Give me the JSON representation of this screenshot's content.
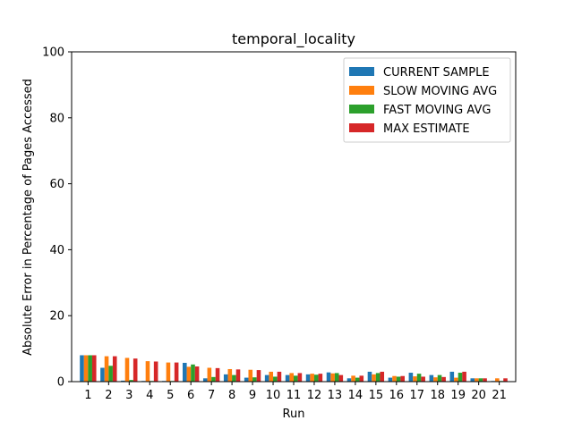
{
  "chart_data": {
    "type": "bar",
    "title": "temporal_locality",
    "xlabel": "Run",
    "ylabel": "Absolute Error in Percentage of Pages Accessed",
    "ylim": [
      0,
      100
    ],
    "yticks": [
      0,
      20,
      40,
      60,
      80,
      100
    ],
    "legend_position": "top-right",
    "grid": false,
    "categories": [
      "1",
      "2",
      "3",
      "4",
      "5",
      "6",
      "7",
      "8",
      "9",
      "10",
      "11",
      "12",
      "13",
      "14",
      "15",
      "16",
      "17",
      "18",
      "19",
      "20",
      "21"
    ],
    "series": [
      {
        "name": "CURRENT SAMPLE",
        "color": "#1f77b4",
        "values": [
          8.0,
          4.2,
          0.3,
          0.2,
          0.2,
          5.7,
          1.0,
          2.2,
          1.2,
          2.0,
          2.0,
          2.2,
          2.8,
          1.0,
          3.0,
          1.2,
          2.7,
          2.0,
          3.0,
          1.0,
          0.2
        ]
      },
      {
        "name": "SLOW MOVING AVG",
        "color": "#ff7f0e",
        "values": [
          8.0,
          7.7,
          7.2,
          6.2,
          5.8,
          4.5,
          4.2,
          3.8,
          3.6,
          3.0,
          2.6,
          2.4,
          2.5,
          1.8,
          2.2,
          1.7,
          1.6,
          1.3,
          1.2,
          1.0,
          1.0
        ]
      },
      {
        "name": "FAST MOVING AVG",
        "color": "#2ca02c",
        "values": [
          8.0,
          4.8,
          0.5,
          0.2,
          0.2,
          5.2,
          1.4,
          2.0,
          1.3,
          1.5,
          1.8,
          2.1,
          2.6,
          1.2,
          2.6,
          1.5,
          2.4,
          2.0,
          2.7,
          1.0,
          0.2
        ]
      },
      {
        "name": "MAX ESTIMATE",
        "color": "#d62728",
        "values": [
          8.0,
          7.7,
          7.0,
          6.1,
          5.8,
          4.6,
          4.1,
          3.7,
          3.5,
          3.0,
          2.6,
          2.4,
          2.0,
          1.8,
          3.0,
          1.7,
          1.5,
          1.4,
          3.0,
          1.0,
          1.0
        ]
      }
    ]
  }
}
